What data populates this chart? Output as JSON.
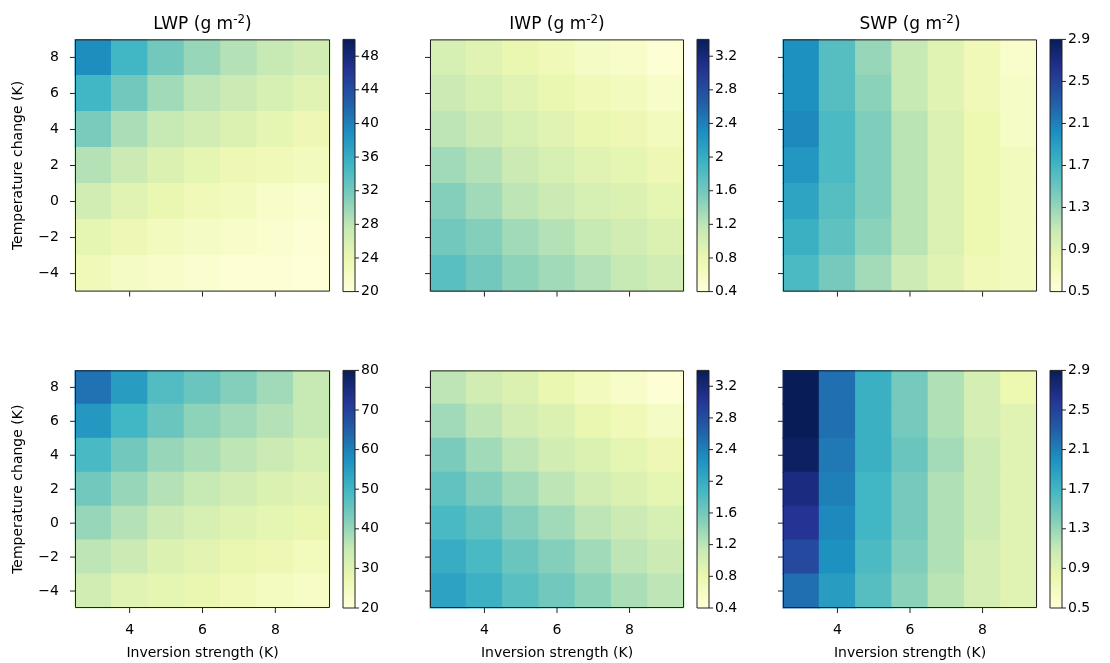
{
  "chart_data": [
    {
      "type": "heatmap",
      "title": "LWP (g m$^{-2}$)",
      "ylabel": "Temperature change (K)",
      "tick_labels": "y",
      "categories": [
        null,
        "4",
        null,
        "6",
        null,
        "8",
        null
      ],
      "y_categories": [
        "8",
        "6",
        "4",
        "2",
        "0",
        "−2",
        "−4"
      ],
      "clim": [
        20,
        50
      ],
      "cticks": [
        20,
        24,
        28,
        32,
        36,
        40,
        44,
        48
      ],
      "cells": [
        [
          39,
          35,
          32,
          30,
          28.5,
          27.5,
          26.5
        ],
        [
          35,
          32,
          29.5,
          28,
          27,
          26,
          25
        ],
        [
          31.5,
          29,
          27.5,
          26.5,
          25.5,
          24.5,
          23.5
        ],
        [
          28.5,
          27,
          25.5,
          24.5,
          23.5,
          23,
          22.5
        ],
        [
          26.5,
          25,
          24,
          23,
          22.5,
          21.5,
          21
        ],
        [
          24.5,
          23.5,
          22.5,
          22,
          21.5,
          21,
          20.5
        ],
        [
          23,
          22,
          21.5,
          21,
          20.5,
          20.5,
          20.2
        ]
      ]
    },
    {
      "type": "heatmap",
      "title": "IWP (g m$^{-2}$)",
      "tick_labels": false,
      "categories": [
        null,
        "4",
        null,
        "6",
        null,
        "8",
        null
      ],
      "y_categories": [
        "8",
        "6",
        "4",
        "2",
        "0",
        "−2",
        "−4"
      ],
      "clim": [
        0.4,
        3.4
      ],
      "cticks": [
        0.4,
        0.8,
        1.2,
        1.6,
        2.0,
        2.4,
        2.8,
        3.2
      ],
      "cells": [
        [
          1.0,
          0.9,
          0.8,
          0.7,
          0.6,
          0.55,
          0.45
        ],
        [
          1.1,
          1.0,
          0.9,
          0.8,
          0.7,
          0.65,
          0.55
        ],
        [
          1.2,
          1.1,
          1.0,
          0.9,
          0.8,
          0.75,
          0.65
        ],
        [
          1.35,
          1.25,
          1.1,
          1.0,
          0.9,
          0.85,
          0.75
        ],
        [
          1.5,
          1.35,
          1.2,
          1.1,
          1.0,
          0.95,
          0.85
        ],
        [
          1.6,
          1.5,
          1.35,
          1.25,
          1.15,
          1.05,
          0.95
        ],
        [
          1.75,
          1.6,
          1.45,
          1.35,
          1.25,
          1.15,
          1.05
        ]
      ]
    },
    {
      "type": "heatmap",
      "title": "SWP (g m$^{-2}$)",
      "tick_labels": false,
      "categories": [
        null,
        "4",
        null,
        "6",
        null,
        "8",
        null
      ],
      "y_categories": [
        "8",
        "6",
        "4",
        "2",
        "0",
        "−2",
        "−4"
      ],
      "clim": [
        0.5,
        2.9
      ],
      "cticks": [
        0.5,
        0.9,
        1.3,
        1.7,
        2.1,
        2.5,
        2.9
      ],
      "cells": [
        [
          2.0,
          1.6,
          1.3,
          1.1,
          0.9,
          0.75,
          0.6
        ],
        [
          2.0,
          1.6,
          1.35,
          1.1,
          0.9,
          0.75,
          0.65
        ],
        [
          2.05,
          1.65,
          1.4,
          1.15,
          0.95,
          0.8,
          0.65
        ],
        [
          1.95,
          1.65,
          1.4,
          1.15,
          0.95,
          0.8,
          0.7
        ],
        [
          1.85,
          1.6,
          1.4,
          1.15,
          0.95,
          0.8,
          0.7
        ],
        [
          1.75,
          1.55,
          1.35,
          1.15,
          0.95,
          0.8,
          0.7
        ],
        [
          1.65,
          1.45,
          1.25,
          1.05,
          0.9,
          0.75,
          0.7
        ]
      ]
    },
    {
      "type": "heatmap",
      "xlabel": "Inversion strength (K)",
      "ylabel": "Temperature change (K)",
      "categories": [
        null,
        "4",
        null,
        "6",
        null,
        "8",
        null
      ],
      "y_categories": [
        "8",
        "6",
        "4",
        "2",
        "0",
        "−2",
        "−4"
      ],
      "clim": [
        20,
        80
      ],
      "cticks": [
        20,
        30,
        40,
        50,
        60,
        70,
        80
      ],
      "cells": [
        [
          62,
          55,
          48,
          45,
          42,
          39,
          35
        ],
        [
          56,
          50,
          45,
          41,
          39,
          37,
          35
        ],
        [
          49,
          44,
          40,
          38,
          36,
          34,
          32
        ],
        [
          44,
          40,
          37,
          35,
          33,
          31,
          30
        ],
        [
          40,
          37,
          34,
          32,
          30.5,
          29,
          28
        ],
        [
          36,
          34,
          31,
          29.5,
          28,
          27,
          25.5
        ],
        [
          33,
          30,
          29,
          28,
          26,
          24.5,
          23.5
        ]
      ]
    },
    {
      "type": "heatmap",
      "xlabel": "Inversion strength (K)",
      "tick_labels": "x",
      "categories": [
        null,
        "4",
        null,
        "6",
        null,
        "8",
        null
      ],
      "y_categories": [
        "8",
        "6",
        "4",
        "2",
        "0",
        "−2",
        "−4"
      ],
      "clim": [
        0.4,
        3.4
      ],
      "cticks": [
        0.4,
        0.8,
        1.2,
        1.6,
        2.0,
        2.4,
        2.8,
        3.2
      ],
      "cells": [
        [
          1.2,
          1.05,
          0.95,
          0.8,
          0.65,
          0.55,
          0.45
        ],
        [
          1.35,
          1.2,
          1.05,
          0.95,
          0.8,
          0.7,
          0.6
        ],
        [
          1.55,
          1.35,
          1.2,
          1.05,
          0.95,
          0.85,
          0.75
        ],
        [
          1.7,
          1.5,
          1.35,
          1.2,
          1.05,
          0.95,
          0.85
        ],
        [
          1.85,
          1.7,
          1.5,
          1.35,
          1.2,
          1.1,
          1.0
        ],
        [
          2.0,
          1.85,
          1.65,
          1.5,
          1.35,
          1.2,
          1.1
        ],
        [
          2.1,
          1.95,
          1.75,
          1.6,
          1.45,
          1.3,
          1.2
        ]
      ]
    },
    {
      "type": "heatmap",
      "xlabel": "Inversion strength (K)",
      "tick_labels": "x",
      "categories": [
        null,
        "4",
        null,
        "6",
        null,
        "8",
        null
      ],
      "y_categories": [
        "8",
        "6",
        "4",
        "2",
        "0",
        "−2",
        "−4"
      ],
      "clim": [
        0.5,
        2.9
      ],
      "cticks": [
        0.5,
        0.9,
        1.3,
        1.7,
        2.1,
        2.5,
        2.9
      ],
      "cells": [
        [
          2.9,
          2.2,
          1.75,
          1.45,
          1.2,
          1.0,
          0.8
        ],
        [
          2.9,
          2.2,
          1.75,
          1.45,
          1.2,
          1.0,
          0.9
        ],
        [
          2.85,
          2.15,
          1.75,
          1.5,
          1.25,
          1.05,
          0.9
        ],
        [
          2.7,
          2.1,
          1.7,
          1.45,
          1.2,
          1.05,
          0.9
        ],
        [
          2.6,
          2.05,
          1.7,
          1.45,
          1.2,
          1.05,
          0.9
        ],
        [
          2.45,
          2.0,
          1.65,
          1.4,
          1.2,
          1.0,
          0.9
        ],
        [
          2.2,
          1.9,
          1.6,
          1.35,
          1.15,
          1.0,
          0.9
        ]
      ]
    }
  ]
}
